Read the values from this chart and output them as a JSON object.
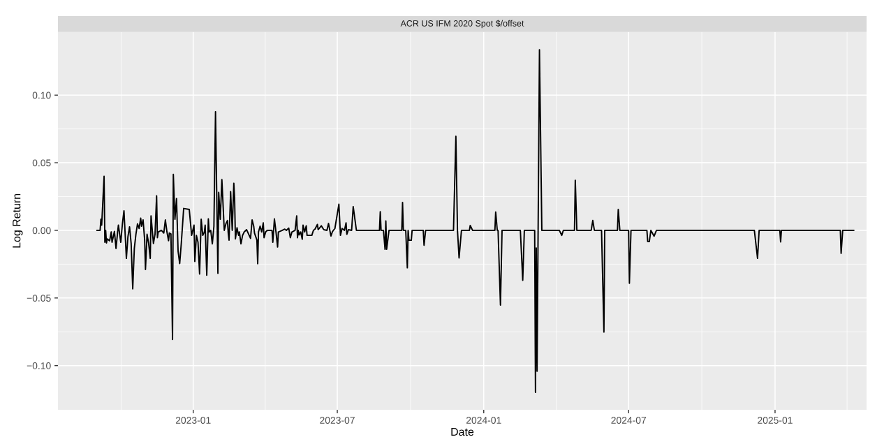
{
  "chart_data": {
    "type": "line",
    "title": "ACR US IFM 2020 Spot $/offset",
    "xlabel": "Date",
    "ylabel": "Log Return",
    "x": [
      "2022-09-02",
      "2022-09-06",
      "2022-09-07",
      "2022-09-08",
      "2022-09-11",
      "2022-09-12",
      "2022-09-13",
      "2022-09-14",
      "2022-09-15",
      "2022-09-18",
      "2022-09-20",
      "2022-09-21",
      "2022-09-24",
      "2022-09-26",
      "2022-09-28",
      "2022-09-29",
      "2022-10-02",
      "2022-10-04",
      "2022-10-06",
      "2022-10-08",
      "2022-10-09",
      "2022-10-11",
      "2022-10-13",
      "2022-10-15",
      "2022-10-17",
      "2022-10-19",
      "2022-10-21",
      "2022-10-23",
      "2022-10-25",
      "2022-10-27",
      "2022-10-28",
      "2022-10-30",
      "2022-11-01",
      "2022-11-02",
      "2022-11-04",
      "2022-11-06",
      "2022-11-08",
      "2022-11-09",
      "2022-11-12",
      "2022-11-14",
      "2022-11-16",
      "2022-11-17",
      "2022-11-18",
      "2022-11-22",
      "2022-11-25",
      "2022-11-27",
      "2022-11-29",
      "2022-12-01",
      "2022-12-02",
      "2022-12-04",
      "2022-12-06",
      "2022-12-07",
      "2022-12-09",
      "2022-12-11",
      "2022-12-13",
      "2022-12-15",
      "2022-12-17",
      "2022-12-20",
      "2022-12-27",
      "2022-12-30",
      "2023-01-02",
      "2023-01-03",
      "2023-01-05",
      "2023-01-07",
      "2023-01-09",
      "2023-01-11",
      "2023-01-13",
      "2023-01-15",
      "2023-01-16",
      "2023-01-18",
      "2023-01-20",
      "2023-01-21",
      "2023-01-23",
      "2023-01-25",
      "2023-01-27",
      "2023-01-29",
      "2023-02-01",
      "2023-02-02",
      "2023-02-04",
      "2023-02-06",
      "2023-02-09",
      "2023-02-11",
      "2023-02-13",
      "2023-02-14",
      "2023-02-15",
      "2023-02-17",
      "2023-02-19",
      "2023-02-21",
      "2023-02-22",
      "2023-02-23",
      "2023-02-25",
      "2023-02-27",
      "2023-02-28",
      "2023-03-02",
      "2023-03-04",
      "2023-03-06",
      "2023-03-09",
      "2023-03-11",
      "2023-03-14",
      "2023-03-16",
      "2023-03-18",
      "2023-03-19",
      "2023-03-22",
      "2023-03-23",
      "2023-03-24",
      "2023-03-26",
      "2023-03-28",
      "2023-03-30",
      "2023-03-31",
      "2023-04-02",
      "2023-04-04",
      "2023-04-10",
      "2023-04-11",
      "2023-04-13",
      "2023-04-15",
      "2023-04-17",
      "2023-04-18",
      "2023-04-23",
      "2023-04-26",
      "2023-04-28",
      "2023-05-01",
      "2023-05-03",
      "2023-05-05",
      "2023-05-09",
      "2023-05-11",
      "2023-05-12",
      "2023-05-13",
      "2023-05-14",
      "2023-05-16",
      "2023-05-18",
      "2023-05-19",
      "2023-05-21",
      "2023-05-23",
      "2023-05-24",
      "2023-05-30",
      "2023-06-01",
      "2023-06-03",
      "2023-06-06",
      "2023-06-07",
      "2023-06-11",
      "2023-06-14",
      "2023-06-18",
      "2023-06-20",
      "2023-06-23",
      "2023-06-25",
      "2023-06-28",
      "2023-07-03",
      "2023-07-05",
      "2023-07-07",
      "2023-07-10",
      "2023-07-12",
      "2023-07-13",
      "2023-07-15",
      "2023-07-19",
      "2023-07-21",
      "2023-07-25",
      "2023-08-23",
      "2023-08-24",
      "2023-08-25",
      "2023-08-28",
      "2023-08-30",
      "2023-08-31",
      "2023-09-01",
      "2023-09-04",
      "2023-09-20",
      "2023-09-21",
      "2023-09-22",
      "2023-09-25",
      "2023-09-27",
      "2023-09-28",
      "2023-09-29",
      "2023-10-02",
      "2023-10-03",
      "2023-10-17",
      "2023-10-18",
      "2023-10-20",
      "2023-11-24",
      "2023-11-27",
      "2023-11-29",
      "2023-12-01",
      "2023-12-04",
      "2023-12-14",
      "2023-12-15",
      "2023-12-18",
      "2024-01-15",
      "2024-01-16",
      "2024-01-18",
      "2024-01-19",
      "2024-01-22",
      "2024-01-24",
      "2024-02-16",
      "2024-02-19",
      "2024-02-21",
      "2024-03-05",
      "2024-03-06",
      "2024-03-07",
      "2024-03-08",
      "2024-03-11",
      "2024-03-14",
      "2024-04-05",
      "2024-04-08",
      "2024-04-10",
      "2024-04-24",
      "2024-04-25",
      "2024-04-27",
      "2024-05-15",
      "2024-05-17",
      "2024-05-19",
      "2024-05-28",
      "2024-05-31",
      "2024-06-01",
      "2024-06-17",
      "2024-06-18",
      "2024-06-20",
      "2024-07-01",
      "2024-07-02",
      "2024-07-04",
      "2024-07-24",
      "2024-07-25",
      "2024-07-27",
      "2024-07-29",
      "2024-08-02",
      "2024-08-05",
      "2024-12-06",
      "2024-12-10",
      "2024-12-12",
      "2025-01-07",
      "2025-01-08",
      "2025-01-09",
      "2025-03-24",
      "2025-03-25",
      "2025-03-27",
      "2025-04-10"
    ],
    "series": [
      {
        "color": "#000000",
        "values": [
          0,
          0,
          0.0082,
          0.0039,
          0.04,
          -0.0088,
          0,
          -0.0093,
          -0.0063,
          -0.0077,
          -0.0012,
          -0.0088,
          -0.0008,
          -0.0134,
          -0.0012,
          0.0039,
          -0.0088,
          0.0048,
          0.0145,
          -0.0088,
          -0.0207,
          -0.0046,
          0.0026,
          -0.0097,
          -0.0432,
          -0.0134,
          -0.0029,
          0.0048,
          0.0014,
          0.009,
          0.0031,
          0.0077,
          -0.0072,
          -0.0289,
          -0.0029,
          -0.0097,
          -0.0207,
          0.0107,
          -0.0097,
          -0.0029,
          0.0255,
          -0.0054,
          -0.0012,
          0,
          -0.002,
          0.0077,
          -0.0012,
          -0.0077,
          -0.002,
          -0.0026,
          -0.0807,
          0.0414,
          0.0082,
          0.0235,
          -0.0156,
          -0.0245,
          -0.0097,
          0.0162,
          0.0155,
          -0.0037,
          0.0039,
          -0.023,
          -0.0037,
          -0.0088,
          -0.0323,
          0.0082,
          -0.0037,
          -0.0012,
          0.0039,
          -0.0332,
          0.0085,
          -0.0012,
          0,
          -0.01,
          0.0031,
          0.0877,
          -0.0318,
          0.0281,
          0.0082,
          0.0375,
          0,
          0.0048,
          0.0073,
          -0.002,
          -0.0072,
          0.0286,
          0,
          0.0349,
          0.0235,
          -0.0063,
          0.0019,
          -0.0037,
          -0.0012,
          -0.01,
          -0.0037,
          -0.0012,
          0.0005,
          -0.002,
          -0.0059,
          0.0077,
          0.0031,
          -0.002,
          -0.0072,
          -0.0247,
          -0.0012,
          0.0031,
          -0.0012,
          0.0056,
          -0.0054,
          -0.0012,
          0,
          0,
          -0.0088,
          0.0085,
          -0.0012,
          -0.0123,
          -0.0012,
          0,
          0.0009,
          0,
          0.0017,
          -0.0054,
          -0.0012,
          0,
          0.0107,
          -0.0054,
          0,
          -0.0034,
          -0.0012,
          -0.0066,
          0.0039,
          -0.0012,
          0.0034,
          -0.0037,
          -0.0037,
          0,
          0.0009,
          0.0044,
          0.0005,
          0.0034,
          0.0005,
          0,
          0.0051,
          -0.0042,
          -0.0008,
          0.0014,
          0.0193,
          -0.0037,
          0.0014,
          0,
          0.0056,
          -0.0029,
          0.0005,
          0,
          0.0176,
          0,
          0,
          0.0138,
          0,
          0,
          -0.014,
          0.007,
          -0.014,
          0,
          0,
          0.0206,
          0,
          0,
          -0.0277,
          0,
          -0.0073,
          -0.0073,
          0,
          0,
          -0.011,
          0,
          0,
          0.0695,
          0,
          -0.0204,
          0,
          0,
          0.0036,
          0,
          0,
          0.0136,
          0,
          0,
          -0.0553,
          0,
          0,
          -0.0369,
          0,
          0,
          -0.1198,
          -0.0131,
          -0.1042,
          0.1336,
          0,
          0,
          -0.0037,
          0,
          0,
          0.0371,
          0,
          0,
          0.0073,
          0,
          0,
          -0.0752,
          0,
          0,
          0.0155,
          0,
          0,
          -0.0391,
          0,
          0,
          -0.0083,
          -0.0083,
          0,
          -0.0043,
          0,
          0,
          -0.0207,
          0,
          0,
          -0.0085,
          0,
          0,
          -0.017,
          0,
          0
        ]
      }
    ],
    "xlim": [
      "2022-07-15",
      "2025-04-26"
    ],
    "ylim": [
      -0.1327,
      0.1467
    ],
    "xticks": [
      {
        "value": "2023-01-01",
        "label": "2023-01"
      },
      {
        "value": "2023-07-01",
        "label": "2023-07"
      },
      {
        "value": "2024-01-01",
        "label": "2024-01"
      },
      {
        "value": "2024-07-01",
        "label": "2024-07"
      },
      {
        "value": "2025-01-01",
        "label": "2025-01"
      }
    ],
    "yticks": [
      {
        "value": -0.1,
        "label": "−0.10"
      },
      {
        "value": -0.05,
        "label": "−0.05"
      },
      {
        "value": 0,
        "label": "0.00"
      },
      {
        "value": 0.05,
        "label": "0.05"
      },
      {
        "value": 0.1,
        "label": "0.10"
      }
    ],
    "grid": true
  }
}
